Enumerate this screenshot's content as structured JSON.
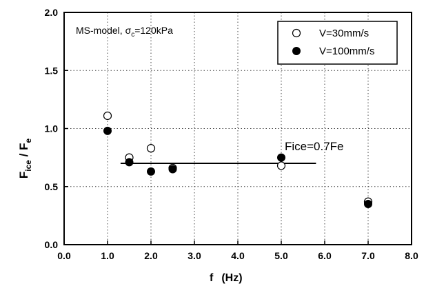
{
  "chart_data": {
    "type": "scatter",
    "title": "",
    "xlabel": "f (Hz)",
    "ylabel": "Fice / Fe",
    "xlim": [
      0,
      8
    ],
    "ylim": [
      0,
      2
    ],
    "x_ticks": [
      "0.0",
      "1.0",
      "2.0",
      "3.0",
      "4.0",
      "5.0",
      "6.0",
      "7.0",
      "8.0"
    ],
    "y_ticks": [
      "0.0",
      "0.5",
      "1.0",
      "1.5",
      "2.0"
    ],
    "grid": true,
    "legend_position": "top-right",
    "model_label": "MS-model, σc=120kPa",
    "series": [
      {
        "name": "V=30mm/s",
        "marker": "open-circle",
        "points": [
          {
            "x": 1.0,
            "y": 1.11
          },
          {
            "x": 1.5,
            "y": 0.75
          },
          {
            "x": 2.0,
            "y": 0.83
          },
          {
            "x": 2.5,
            "y": 0.66
          },
          {
            "x": 5.0,
            "y": 0.68
          },
          {
            "x": 7.0,
            "y": 0.37
          }
        ]
      },
      {
        "name": "V=100mm/s",
        "marker": "filled-circle",
        "points": [
          {
            "x": 1.0,
            "y": 0.98
          },
          {
            "x": 1.5,
            "y": 0.71
          },
          {
            "x": 2.0,
            "y": 0.63
          },
          {
            "x": 2.5,
            "y": 0.65
          },
          {
            "x": 5.0,
            "y": 0.75
          },
          {
            "x": 7.0,
            "y": 0.35
          }
        ]
      }
    ],
    "reference_line": {
      "label": "Fice=0.7Fe",
      "y": 0.7,
      "x_start": 1.3,
      "x_end": 5.8
    }
  }
}
